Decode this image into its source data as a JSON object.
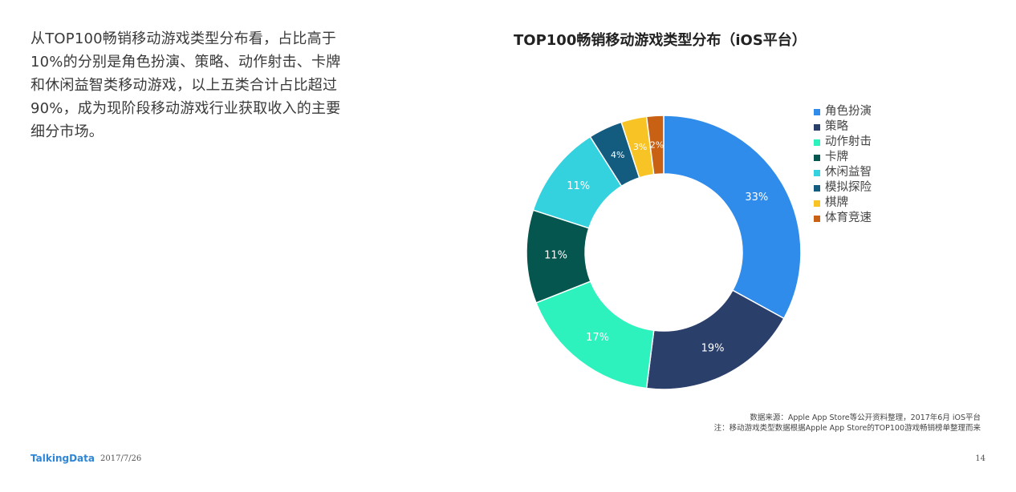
{
  "summary": "从TOP100畅销移动游戏类型分布看，占比高于10%的分别是角色扮演、策略、动作射击、卡牌和休闲益智类移动游戏，以上五类合计占比超过90%，成为现阶段移动游戏行业获取收入的主要细分市场。",
  "chart_data": {
    "type": "pie",
    "variant": "donut",
    "title": "TOP100畅销移动游戏类型分布（iOS平台）",
    "legend_position": "right",
    "categories": [
      "角色扮演",
      "策略",
      "动作射击",
      "卡牌",
      "休闲益智",
      "模拟探险",
      "棋牌",
      "体育竞速"
    ],
    "values": [
      33,
      19,
      17,
      11,
      11,
      4,
      3,
      2
    ],
    "labels": [
      "33%",
      "19%",
      "17%",
      "11%",
      "11%",
      "4%",
      "3%",
      "2%"
    ],
    "colors": [
      "#2f8ceb",
      "#2b3f6b",
      "#2ef2bd",
      "#05564f",
      "#33d2de",
      "#135c80",
      "#f7c325",
      "#c86113"
    ]
  },
  "notes": {
    "source": "数据来源：Apple App Store等公开资料整理，2017年6月 iOS平台",
    "note": "注：移动游戏类型数据根据Apple App Store的TOP100游戏畅销榜单整理而来"
  },
  "footer": {
    "brand": "TalkingData",
    "date": "2017/7/26",
    "page": "14"
  }
}
